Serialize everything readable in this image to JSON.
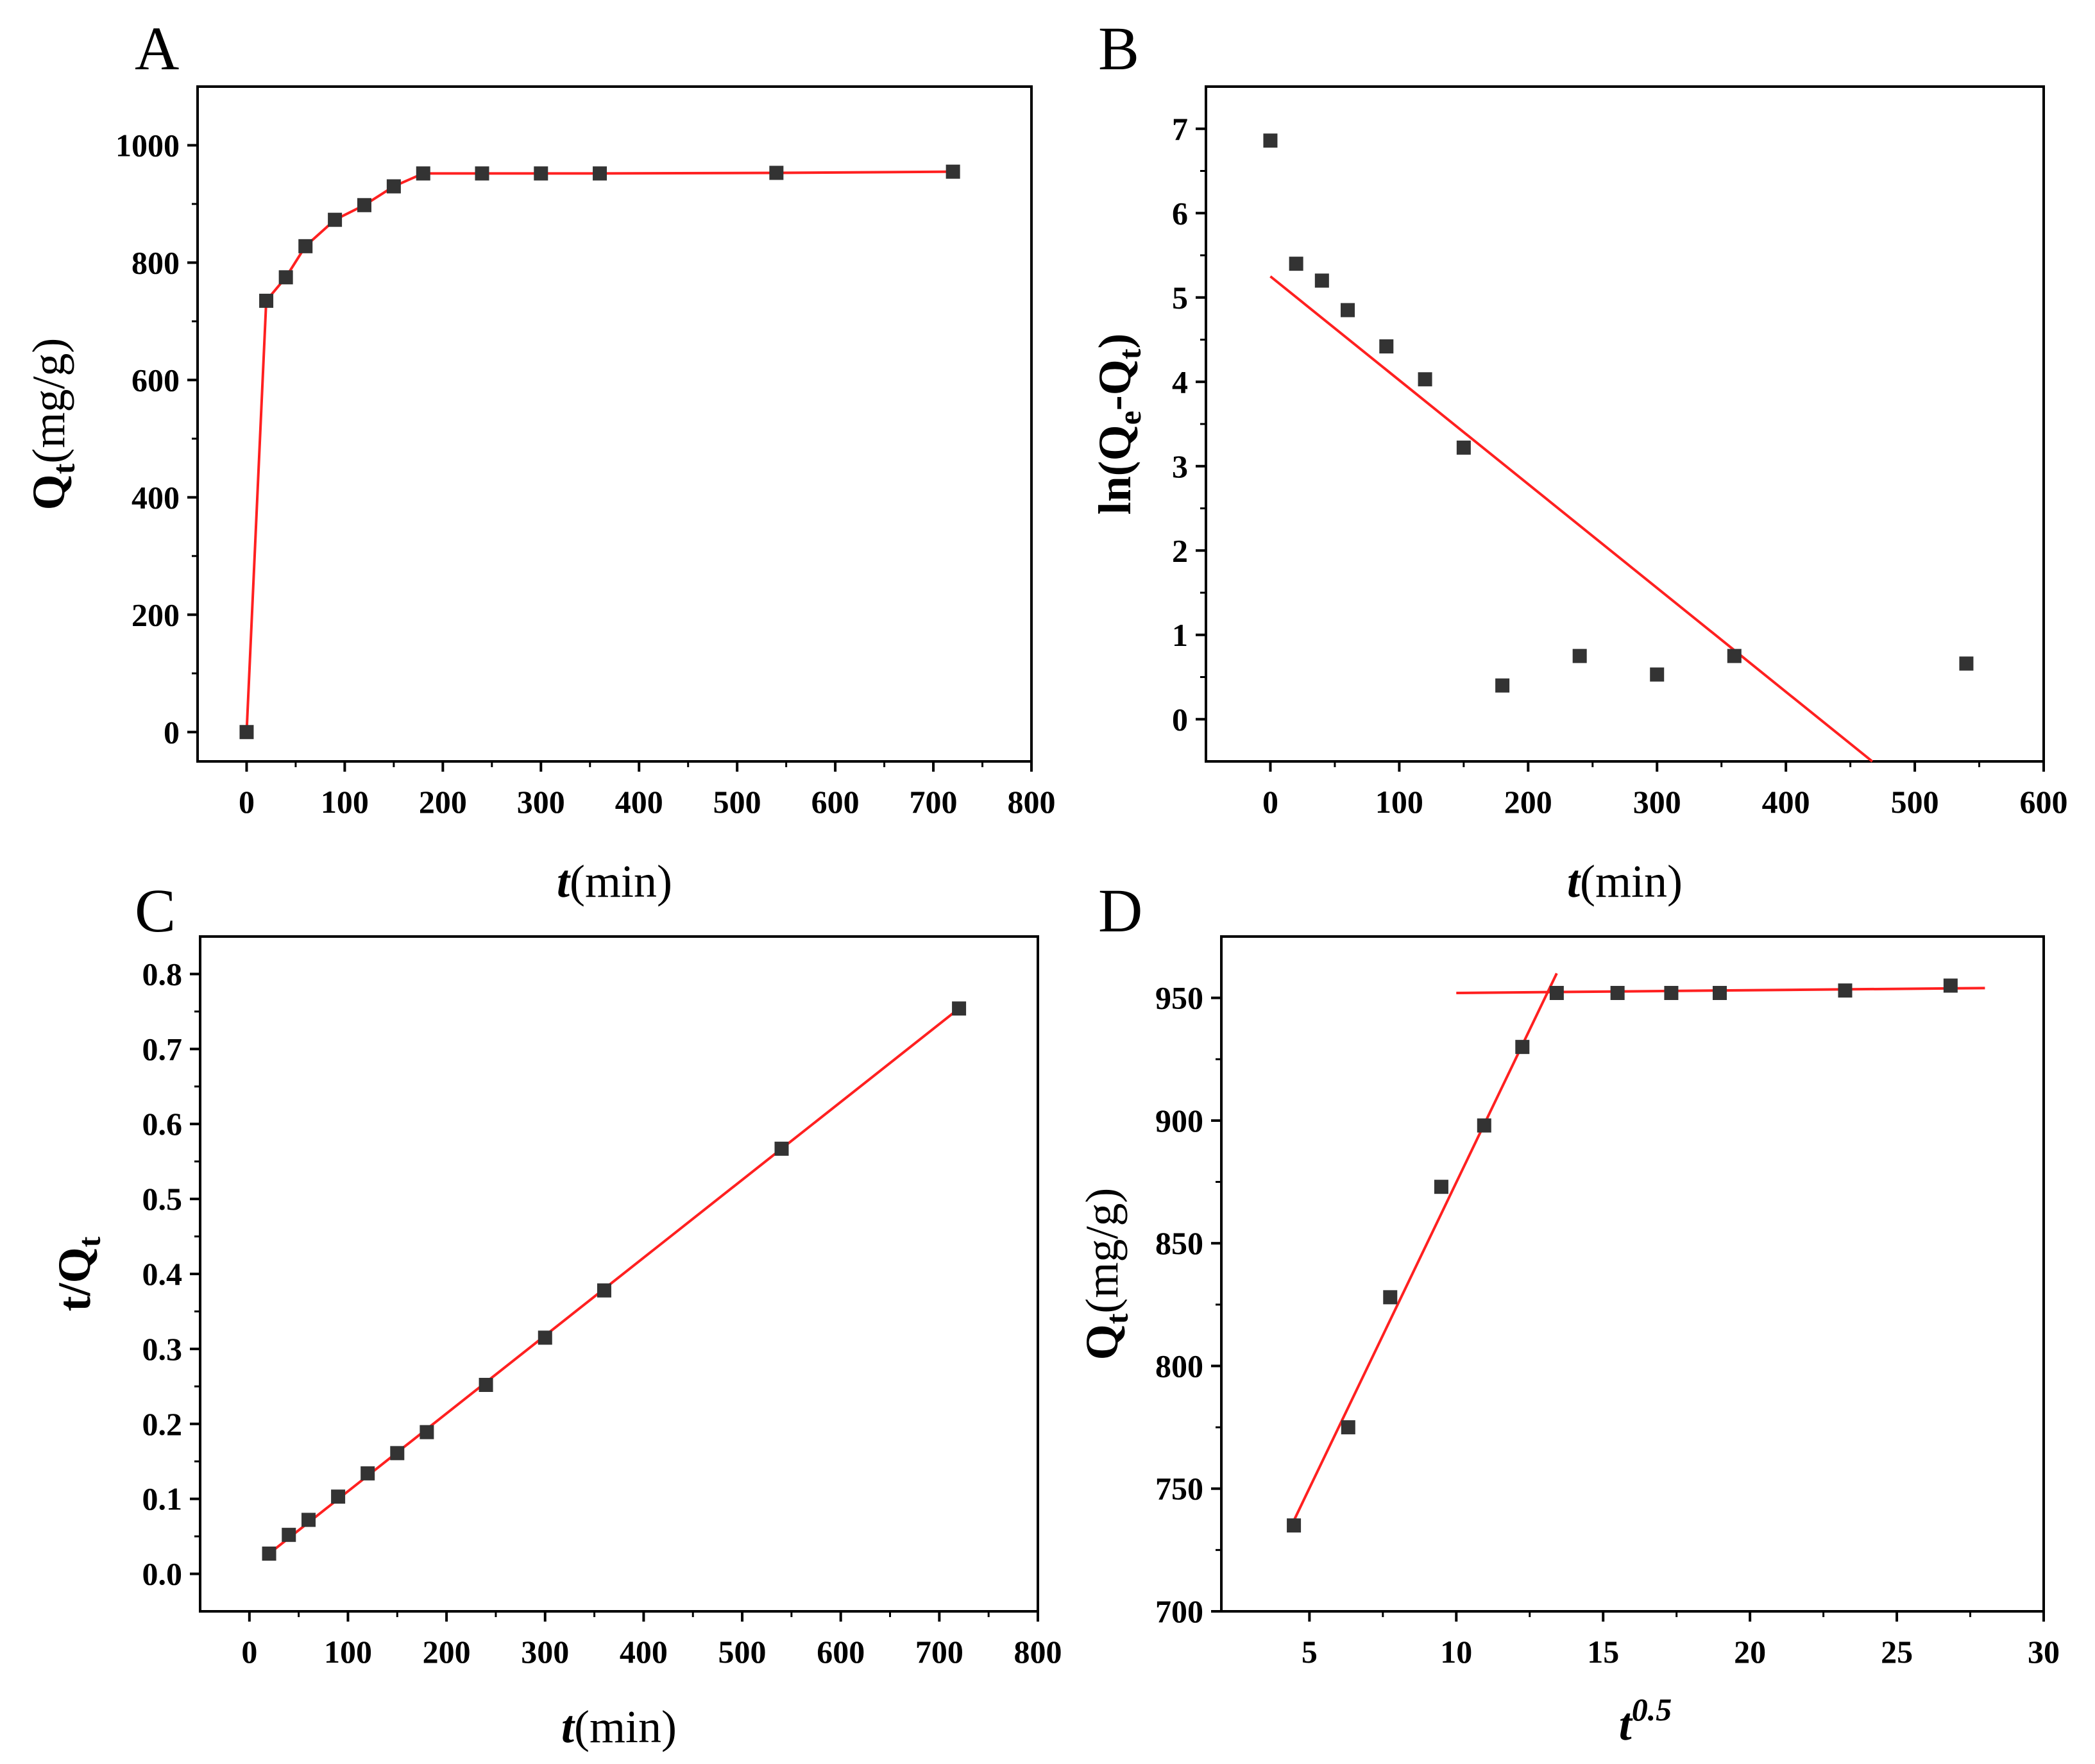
{
  "chart_data": [
    {
      "id": "A",
      "panel": "A",
      "type": "scatter",
      "series": [
        {
          "name": "Qt",
          "x": [
            0,
            20,
            40,
            60,
            90,
            120,
            150,
            180,
            240,
            300,
            360,
            540,
            720
          ],
          "y": [
            0,
            735,
            775,
            828,
            873,
            898,
            930,
            952,
            952,
            952,
            952,
            953,
            955
          ]
        }
      ],
      "fits": [
        {
          "kind": "connect",
          "x": [
            0,
            20,
            40,
            60,
            90,
            120,
            150,
            180,
            240,
            300,
            360,
            540,
            720
          ],
          "y": [
            0,
            735,
            775,
            828,
            873,
            898,
            930,
            952,
            952,
            952,
            952,
            953,
            955
          ]
        }
      ],
      "xlim": [
        -50,
        800
      ],
      "ylim": [
        -50,
        1100
      ],
      "xticks": [
        0,
        100,
        200,
        300,
        400,
        500,
        600,
        700,
        800
      ],
      "yticks": [
        0,
        200,
        400,
        600,
        800,
        1000
      ],
      "xlabel": {
        "main": "t",
        "rest": "(min)"
      },
      "ylabel": {
        "main": "Q",
        "sub": "t",
        "rest": "(mg/g)"
      }
    },
    {
      "id": "B",
      "panel": "B",
      "type": "scatter",
      "series": [
        {
          "name": "ln(Qe-Qt)",
          "x": [
            0,
            20,
            40,
            60,
            90,
            120,
            150,
            180,
            240,
            300,
            360,
            540
          ],
          "y": [
            6.86,
            5.4,
            5.2,
            4.85,
            4.42,
            4.03,
            3.22,
            0.4,
            0.75,
            0.53,
            0.75,
            0.66
          ]
        }
      ],
      "fits": [
        {
          "kind": "line",
          "x": [
            0,
            467
          ],
          "y": [
            5.25,
            -0.5
          ]
        }
      ],
      "xlim": [
        -50,
        600
      ],
      "ylim": [
        -0.5,
        7.5
      ],
      "xticks": [
        0,
        100,
        200,
        300,
        400,
        500,
        600
      ],
      "yticks": [
        0,
        1,
        2,
        3,
        4,
        5,
        6,
        7
      ],
      "xlabel": {
        "main": "t",
        "rest": "(min)"
      },
      "ylabel": {
        "pre": "ln(Q",
        "sub1": "e",
        "mid": "-Q",
        "sub2": "t",
        "post": ")"
      }
    },
    {
      "id": "C",
      "panel": "C",
      "type": "scatter",
      "series": [
        {
          "name": "t/Qt",
          "x": [
            20,
            40,
            60,
            90,
            120,
            150,
            180,
            240,
            300,
            360,
            540,
            720
          ],
          "y": [
            0.027,
            0.052,
            0.072,
            0.103,
            0.134,
            0.161,
            0.189,
            0.252,
            0.315,
            0.378,
            0.567,
            0.754
          ]
        }
      ],
      "fits": [
        {
          "kind": "line",
          "x": [
            20,
            720
          ],
          "y": [
            0.027,
            0.754
          ]
        }
      ],
      "xlim": [
        -50,
        800
      ],
      "ylim": [
        -0.05,
        0.85
      ],
      "xticks": [
        0,
        100,
        200,
        300,
        400,
        500,
        600,
        700,
        800
      ],
      "yticks": [
        0.0,
        0.1,
        0.2,
        0.3,
        0.4,
        0.5,
        0.6,
        0.7,
        0.8
      ],
      "ytick_labels": [
        "0.0",
        "0.1",
        "0.2",
        "0.3",
        "0.4",
        "0.5",
        "0.6",
        "0.7",
        "0.8"
      ],
      "xlabel": {
        "main": "t",
        "rest": "(min)"
      },
      "ylabel": {
        "main": "t/Q",
        "sub": "t"
      }
    },
    {
      "id": "D",
      "panel": "D",
      "type": "scatter",
      "series": [
        {
          "name": "Qt",
          "x": [
            4.47,
            6.32,
            7.75,
            9.49,
            10.95,
            12.25,
            13.42,
            15.49,
            17.32,
            18.97,
            23.24,
            26.83
          ],
          "y": [
            735,
            775,
            828,
            873,
            898,
            930,
            952,
            952,
            952,
            952,
            953,
            955
          ]
        }
      ],
      "fits": [
        {
          "kind": "line",
          "x": [
            4.47,
            13.42
          ],
          "y": [
            737,
            960
          ]
        },
        {
          "kind": "line",
          "x": [
            10,
            28
          ],
          "y": [
            952,
            954
          ]
        }
      ],
      "xlim": [
        2,
        30
      ],
      "ylim": [
        700,
        975
      ],
      "xticks": [
        5,
        10,
        15,
        20,
        25,
        30
      ],
      "yticks": [
        700,
        750,
        800,
        850,
        900,
        950
      ],
      "xlabel": {
        "main": "t",
        "sup": "0.5"
      },
      "ylabel": {
        "main": "Q",
        "sub": "t",
        "rest": "(mg/g)"
      }
    }
  ]
}
